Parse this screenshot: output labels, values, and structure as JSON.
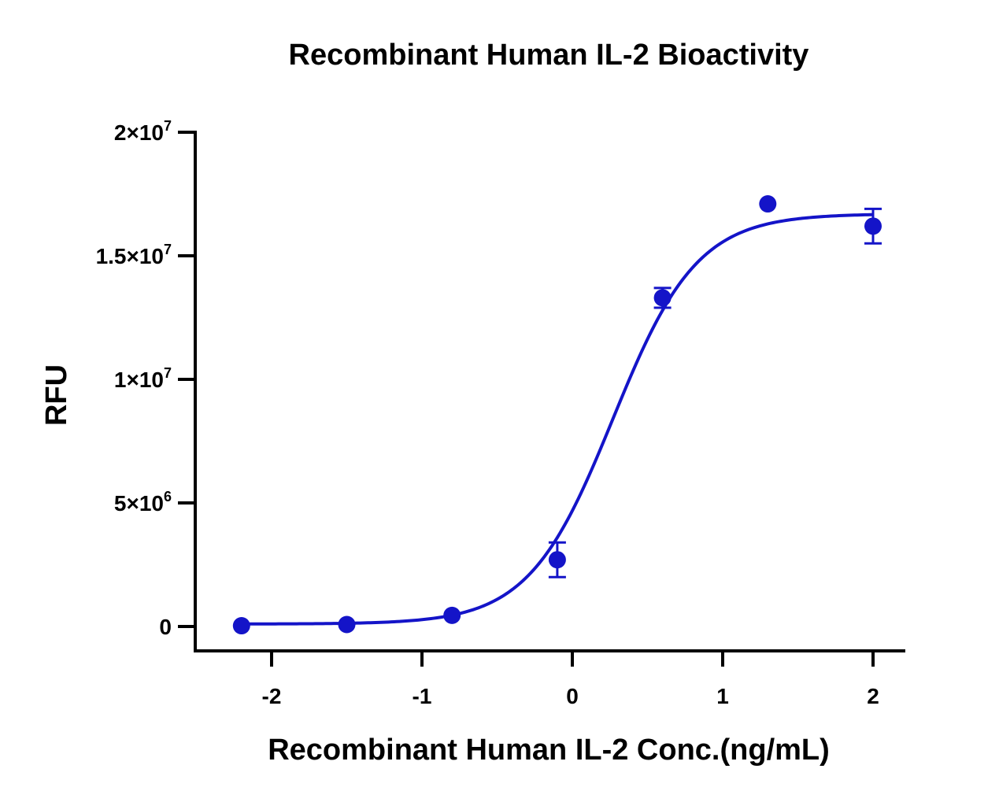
{
  "chart_data": {
    "type": "scatter",
    "title": "Recombinant Human IL-2 Bioactivity",
    "xlabel": "Recombinant Human IL-2 Conc.(ng/mL)",
    "ylabel": "RFU",
    "xlim": [
      -2.5,
      2.2
    ],
    "ylim": [
      -1000000,
      20000000
    ],
    "x_ticks": [
      -2,
      -1,
      0,
      1,
      2
    ],
    "x_tick_labels": [
      "-2",
      "-1",
      "0",
      "1",
      "2"
    ],
    "y_ticks": [
      {
        "value": 0,
        "base": "0",
        "exp": ""
      },
      {
        "value": 5000000,
        "base": "5×10",
        "exp": "6"
      },
      {
        "value": 10000000,
        "base": "1×10",
        "exp": "7"
      },
      {
        "value": 15000000,
        "base": "1.5×10",
        "exp": "7"
      },
      {
        "value": 20000000,
        "base": "2×10",
        "exp": "7"
      }
    ],
    "color": "#1414c8",
    "grid": false,
    "legend": "none",
    "series": [
      {
        "points": [
          {
            "x": -2.2,
            "y": 30000,
            "err": 0
          },
          {
            "x": -1.5,
            "y": 80000,
            "err": 0
          },
          {
            "x": -0.8,
            "y": 450000,
            "err": 0
          },
          {
            "x": -0.1,
            "y": 2700000,
            "err": 700000
          },
          {
            "x": 0.6,
            "y": 13300000,
            "err": 400000
          },
          {
            "x": 1.3,
            "y": 17100000,
            "err": 0
          },
          {
            "x": 2.0,
            "y": 16200000,
            "err": 700000
          }
        ],
        "fit": {
          "model": "4PL",
          "bottom": 100000,
          "top": 16700000,
          "log_ec50": 0.27,
          "hill": 1.55
        }
      }
    ]
  }
}
